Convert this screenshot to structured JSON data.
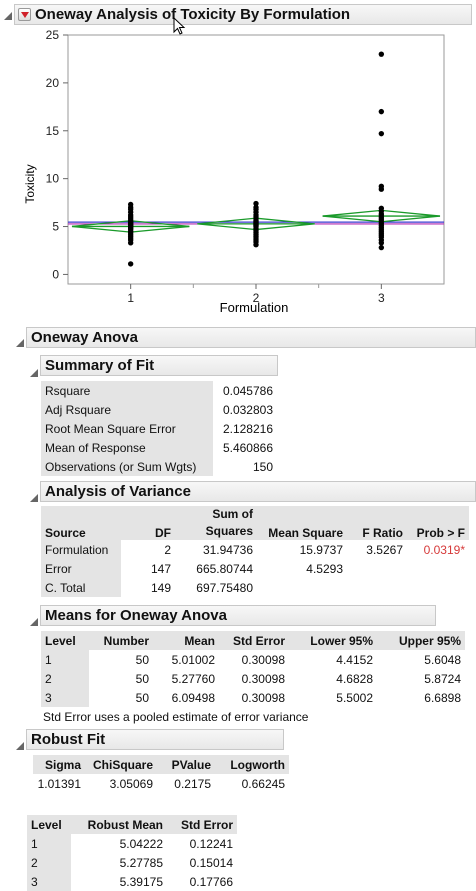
{
  "report": {
    "title": "Oneway Analysis of Toxicity By Formulation"
  },
  "chart_data": {
    "type": "scatter",
    "xlabel": "Formulation",
    "ylabel": "Toxicity",
    "categories": [
      "1",
      "2",
      "3"
    ],
    "yticks": [
      "0",
      "5",
      "10",
      "15",
      "20",
      "25"
    ],
    "ylim": [
      -1,
      25
    ],
    "grand_mean": 5.460866,
    "robust_mean_line": 5.27,
    "points": {
      "1": [
        1.1,
        3.3,
        3.6,
        3.8,
        4.0,
        4.2,
        4.4,
        4.5,
        4.7,
        4.8,
        4.9,
        5.0,
        5.1,
        5.2,
        5.3,
        5.4,
        5.5,
        5.6,
        5.8,
        6.0,
        6.2,
        6.5,
        6.8,
        7.0,
        7.3
      ],
      "2": [
        3.1,
        3.4,
        3.6,
        3.8,
        4.0,
        4.2,
        4.4,
        4.6,
        4.8,
        5.0,
        5.1,
        5.2,
        5.3,
        5.4,
        5.5,
        5.6,
        5.8,
        6.0,
        6.2,
        6.5,
        6.8,
        7.0,
        7.4
      ],
      "3": [
        2.8,
        3.3,
        3.6,
        3.9,
        4.1,
        4.3,
        4.5,
        4.7,
        4.9,
        5.1,
        5.3,
        5.5,
        5.7,
        5.9,
        6.1,
        6.3,
        6.6,
        6.9,
        8.9,
        9.2,
        14.7,
        17.0,
        23.0
      ]
    },
    "diamonds": [
      {
        "mean": 5.01002,
        "lower": 4.4152,
        "upper": 5.6048
      },
      {
        "mean": 5.2776,
        "lower": 4.6828,
        "upper": 5.8724
      },
      {
        "mean": 6.09498,
        "lower": 5.5002,
        "upper": 6.6898
      }
    ]
  },
  "oneway_anova": {
    "title": "Oneway Anova",
    "summary": {
      "title": "Summary of Fit",
      "rows": [
        {
          "label": "Rsquare",
          "value": "0.045786"
        },
        {
          "label": "Adj Rsquare",
          "value": "0.032803"
        },
        {
          "label": "Root Mean Square Error",
          "value": "2.128216"
        },
        {
          "label": "Mean of Response",
          "value": "5.460866"
        },
        {
          "label": "Observations (or Sum Wgts)",
          "value": "150"
        }
      ]
    },
    "anova": {
      "title": "Analysis of Variance",
      "headers": {
        "source": "Source",
        "df": "DF",
        "ss_top": "Sum of",
        "ss_bottom": "Squares",
        "ms": "Mean Square",
        "f": "F Ratio",
        "p": "Prob > F"
      },
      "rows": [
        {
          "source": "Formulation",
          "df": "2",
          "ss": "31.94736",
          "ms": "15.9737",
          "f": "3.5267",
          "p": "0.0319*"
        },
        {
          "source": "Error",
          "df": "147",
          "ss": "665.80744",
          "ms": "4.5293",
          "f": "",
          "p": ""
        },
        {
          "source": "C. Total",
          "df": "149",
          "ss": "697.75480",
          "ms": "",
          "f": "",
          "p": ""
        }
      ]
    },
    "means": {
      "title": "Means for Oneway Anova",
      "headers": [
        "Level",
        "Number",
        "Mean",
        "Std Error",
        "Lower 95%",
        "Upper 95%"
      ],
      "rows": [
        [
          "1",
          "50",
          "5.01002",
          "0.30098",
          "4.4152",
          "5.6048"
        ],
        [
          "2",
          "50",
          "5.27760",
          "0.30098",
          "4.6828",
          "5.8724"
        ],
        [
          "3",
          "50",
          "6.09498",
          "0.30098",
          "5.5002",
          "6.6898"
        ]
      ],
      "note": "Std Error uses a pooled estimate of error variance"
    }
  },
  "robust_fit": {
    "title": "Robust Fit",
    "stats_headers": [
      "Sigma",
      "ChiSquare",
      "PValue",
      "Logworth"
    ],
    "stats_values": [
      "1.01391",
      "3.05069",
      "0.2175",
      "0.66245"
    ],
    "level_headers": [
      "Level",
      "Robust Mean",
      "Std Error"
    ],
    "level_rows": [
      [
        "1",
        "5.04222",
        "0.12241"
      ],
      [
        "2",
        "5.27785",
        "0.15014"
      ],
      [
        "3",
        "5.39175",
        "0.17766"
      ]
    ]
  },
  "colors": {
    "diamond": "#1a9a2a",
    "grand_mean": "#3b3bd0",
    "robust_mean": "#b02ab0",
    "significant": "#d63a3a"
  }
}
